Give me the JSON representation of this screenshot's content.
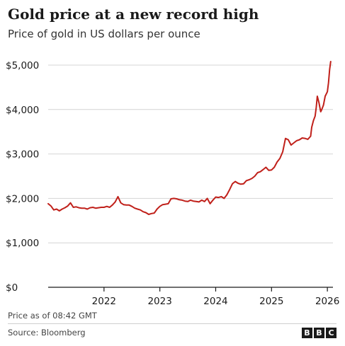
{
  "header": {
    "title": "Gold price at a new record high",
    "subtitle": "Price of gold in US dollars per ounce"
  },
  "footer": {
    "note": "Price as of 08:42 GMT",
    "source": "Source: Bloomberg",
    "logo": [
      "B",
      "B",
      "C"
    ]
  },
  "colors": {
    "line": "#c0201a",
    "grid": "#d4d4d4",
    "axis": "#1a1a1a",
    "text": "#1a1a1a"
  },
  "chart_data": {
    "type": "line",
    "title": "Gold price at a new record high",
    "subtitle": "Price of gold in US dollars per ounce",
    "xlabel": "",
    "ylabel": "",
    "x_unit": "year",
    "xlim": [
      2021.0,
      2026.1
    ],
    "ylim": [
      0,
      5000
    ],
    "y_ticks": [
      0,
      1000,
      2000,
      3000,
      4000,
      5000
    ],
    "y_tick_labels": [
      "$0",
      "$1,000",
      "$2,000",
      "$3,000",
      "$4,000",
      "$5,000"
    ],
    "x_ticks": [
      2022,
      2023,
      2024,
      2025,
      2026
    ],
    "x_tick_labels": [
      "2022",
      "2023",
      "2024",
      "2025",
      "2026"
    ],
    "grid": true,
    "legend": "none",
    "series": [
      {
        "color": "#c0201a",
        "x": [
          2021.0,
          2021.05,
          2021.1,
          2021.15,
          2021.2,
          2021.25,
          2021.3,
          2021.35,
          2021.4,
          2021.45,
          2021.5,
          2021.55,
          2021.6,
          2021.65,
          2021.7,
          2021.75,
          2021.8,
          2021.85,
          2021.9,
          2021.95,
          2022.0,
          2022.05,
          2022.1,
          2022.15,
          2022.2,
          2022.25,
          2022.3,
          2022.35,
          2022.4,
          2022.45,
          2022.5,
          2022.55,
          2022.6,
          2022.65,
          2022.7,
          2022.75,
          2022.8,
          2022.85,
          2022.9,
          2022.95,
          2023.0,
          2023.05,
          2023.1,
          2023.15,
          2023.2,
          2023.25,
          2023.3,
          2023.35,
          2023.4,
          2023.45,
          2023.5,
          2023.55,
          2023.6,
          2023.65,
          2023.7,
          2023.75,
          2023.8,
          2023.85,
          2023.9,
          2023.95,
          2024.0,
          2024.05,
          2024.1,
          2024.15,
          2024.2,
          2024.25,
          2024.3,
          2024.35,
          2024.4,
          2024.45,
          2024.5,
          2024.55,
          2024.6,
          2024.65,
          2024.7,
          2024.75,
          2024.8,
          2024.85,
          2024.9,
          2024.95,
          2025.0,
          2025.05,
          2025.1,
          2025.15,
          2025.2,
          2025.25,
          2025.3,
          2025.35,
          2025.4,
          2025.45,
          2025.5,
          2025.55,
          2025.6,
          2025.65,
          2025.7,
          2025.72,
          2025.75,
          2025.78,
          2025.8,
          2025.82,
          2025.85,
          2025.88,
          2025.9,
          2025.93,
          2025.96,
          2026.0,
          2026.02,
          2026.04,
          2026.06
        ],
        "y": [
          1880,
          1830,
          1740,
          1760,
          1720,
          1760,
          1790,
          1830,
          1900,
          1800,
          1810,
          1790,
          1780,
          1780,
          1760,
          1790,
          1800,
          1780,
          1790,
          1800,
          1800,
          1820,
          1800,
          1850,
          1920,
          2040,
          1900,
          1860,
          1850,
          1850,
          1820,
          1780,
          1760,
          1740,
          1700,
          1680,
          1640,
          1660,
          1670,
          1760,
          1820,
          1860,
          1870,
          1880,
          1990,
          2000,
          1990,
          1970,
          1960,
          1940,
          1930,
          1960,
          1940,
          1930,
          1920,
          1960,
          1930,
          2000,
          1880,
          1960,
          2030,
          2020,
          2040,
          2000,
          2080,
          2200,
          2330,
          2380,
          2340,
          2320,
          2330,
          2400,
          2420,
          2450,
          2500,
          2580,
          2600,
          2650,
          2700,
          2630,
          2640,
          2700,
          2820,
          2900,
          3050,
          3350,
          3320,
          3200,
          3250,
          3300,
          3320,
          3360,
          3350,
          3330,
          3400,
          3600,
          3750,
          3850,
          4050,
          4300,
          4150,
          3950,
          4000,
          4100,
          4300,
          4400,
          4600,
          4900,
          5080
        ]
      }
    ]
  }
}
